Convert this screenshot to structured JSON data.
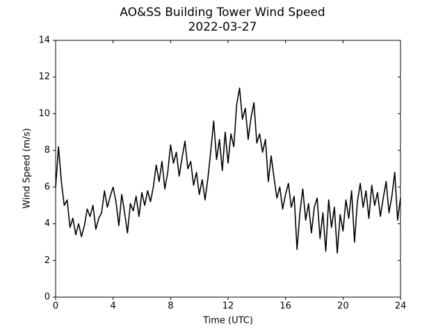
{
  "chart_data": {
    "type": "line",
    "title": "AO&SS Building Tower Wind Speed",
    "subtitle": "2022-03-27",
    "x_label": "Time (UTC)",
    "y_label": "Wind Speed (m/s)",
    "color": "#000000",
    "x": [
      0.0,
      0.2,
      0.4,
      0.6,
      0.8,
      1.0,
      1.2,
      1.4,
      1.6,
      1.8,
      2.0,
      2.2,
      2.4,
      2.6,
      2.8,
      3.0,
      3.2,
      3.4,
      3.6,
      3.8,
      4.0,
      4.2,
      4.4,
      4.6,
      4.8,
      5.0,
      5.2,
      5.4,
      5.6,
      5.8,
      6.0,
      6.2,
      6.4,
      6.6,
      6.8,
      7.0,
      7.2,
      7.4,
      7.6,
      7.8,
      8.0,
      8.2,
      8.4,
      8.6,
      8.8,
      9.0,
      9.2,
      9.4,
      9.6,
      9.8,
      10.0,
      10.2,
      10.4,
      10.6,
      10.8,
      11.0,
      11.2,
      11.4,
      11.6,
      11.8,
      12.0,
      12.2,
      12.4,
      12.6,
      12.8,
      13.0,
      13.2,
      13.4,
      13.6,
      13.8,
      14.0,
      14.2,
      14.4,
      14.6,
      14.8,
      15.0,
      15.2,
      15.4,
      15.6,
      15.8,
      16.0,
      16.2,
      16.4,
      16.6,
      16.8,
      17.0,
      17.2,
      17.4,
      17.6,
      17.8,
      18.0,
      18.2,
      18.4,
      18.6,
      18.8,
      19.0,
      19.2,
      19.4,
      19.6,
      19.8,
      20.0,
      20.2,
      20.4,
      20.6,
      20.8,
      21.0,
      21.2,
      21.4,
      21.6,
      21.8,
      22.0,
      22.2,
      22.4,
      22.6,
      22.8,
      23.0,
      23.2,
      23.4,
      23.6,
      23.8,
      24.0
    ],
    "values": [
      6.0,
      8.2,
      6.3,
      5.0,
      5.3,
      3.8,
      4.3,
      3.4,
      4.0,
      3.3,
      3.9,
      4.8,
      4.4,
      5.0,
      3.7,
      4.3,
      4.6,
      5.8,
      4.9,
      5.5,
      6.0,
      5.2,
      3.9,
      5.6,
      4.6,
      3.5,
      5.1,
      4.7,
      5.5,
      4.4,
      5.7,
      5.0,
      5.8,
      5.2,
      6.0,
      7.2,
      6.3,
      7.4,
      5.9,
      6.8,
      8.3,
      7.3,
      7.9,
      6.6,
      7.6,
      8.5,
      7.0,
      7.4,
      6.1,
      6.8,
      5.6,
      6.4,
      5.3,
      6.5,
      8.0,
      9.6,
      7.5,
      8.6,
      6.9,
      9.0,
      7.3,
      8.9,
      8.2,
      10.5,
      11.4,
      9.7,
      10.3,
      8.6,
      9.8,
      10.6,
      8.4,
      8.9,
      7.9,
      8.6,
      6.3,
      7.7,
      6.5,
      5.4,
      6.0,
      4.8,
      5.6,
      6.2,
      4.9,
      5.5,
      2.6,
      4.6,
      5.9,
      4.2,
      5.1,
      3.5,
      4.9,
      5.4,
      3.2,
      4.6,
      2.5,
      5.3,
      3.8,
      4.9,
      2.4,
      4.5,
      3.6,
      5.3,
      4.3,
      5.8,
      3.0,
      5.2,
      6.2,
      4.9,
      5.8,
      4.3,
      6.1,
      5.0,
      5.7,
      4.4,
      5.4,
      6.3,
      4.6,
      5.5,
      6.8,
      4.2,
      5.4
    ],
    "xlim": [
      0,
      24
    ],
    "xticks": [
      0,
      4,
      8,
      12,
      16,
      20,
      24
    ],
    "ylim": [
      0,
      14
    ],
    "yticks": [
      0,
      2,
      4,
      6,
      8,
      10,
      12,
      14
    ]
  }
}
